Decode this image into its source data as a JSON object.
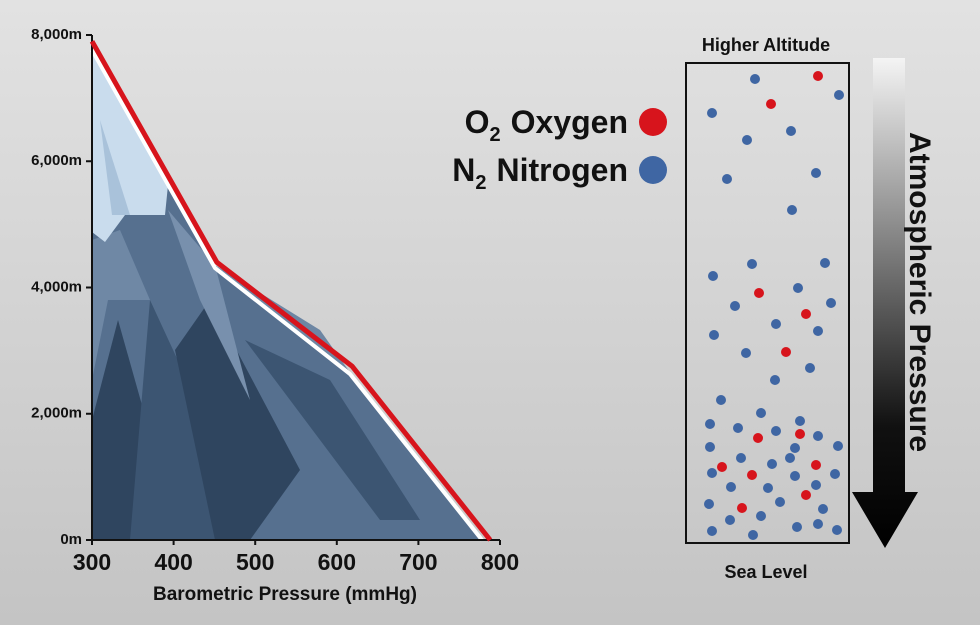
{
  "chart_data": {
    "type": "line",
    "x_label": "Barometric Pressure (mmHg)",
    "x": [
      300,
      453,
      619,
      788
    ],
    "series": [
      {
        "values": [
          7900,
          4400,
          2750,
          0
        ],
        "color": "#d7141c"
      }
    ],
    "xlim": [
      300,
      800
    ],
    "xticks": [
      300,
      400,
      500,
      600,
      700,
      800
    ],
    "ylim": [
      0,
      8000
    ],
    "yticks": [
      {
        "value": 0,
        "label": "0m"
      },
      {
        "value": 2000,
        "label": "2,000m"
      },
      {
        "value": 4000,
        "label": "4,000m"
      },
      {
        "value": 6000,
        "label": "6,000m"
      },
      {
        "value": 8000,
        "label": "8,000m"
      }
    ]
  },
  "legend": [
    {
      "symbol": "O",
      "subscript": "2",
      "name": "Oxygen",
      "color": "#d7141c"
    },
    {
      "symbol": "N",
      "subscript": "2",
      "name": "Nitrogen",
      "color": "#3f66a3"
    }
  ],
  "diagram": {
    "top_label": "Higher Altitude",
    "bottom_label": "Sea Level",
    "arrow_label": "Atmospheric Pressure"
  }
}
